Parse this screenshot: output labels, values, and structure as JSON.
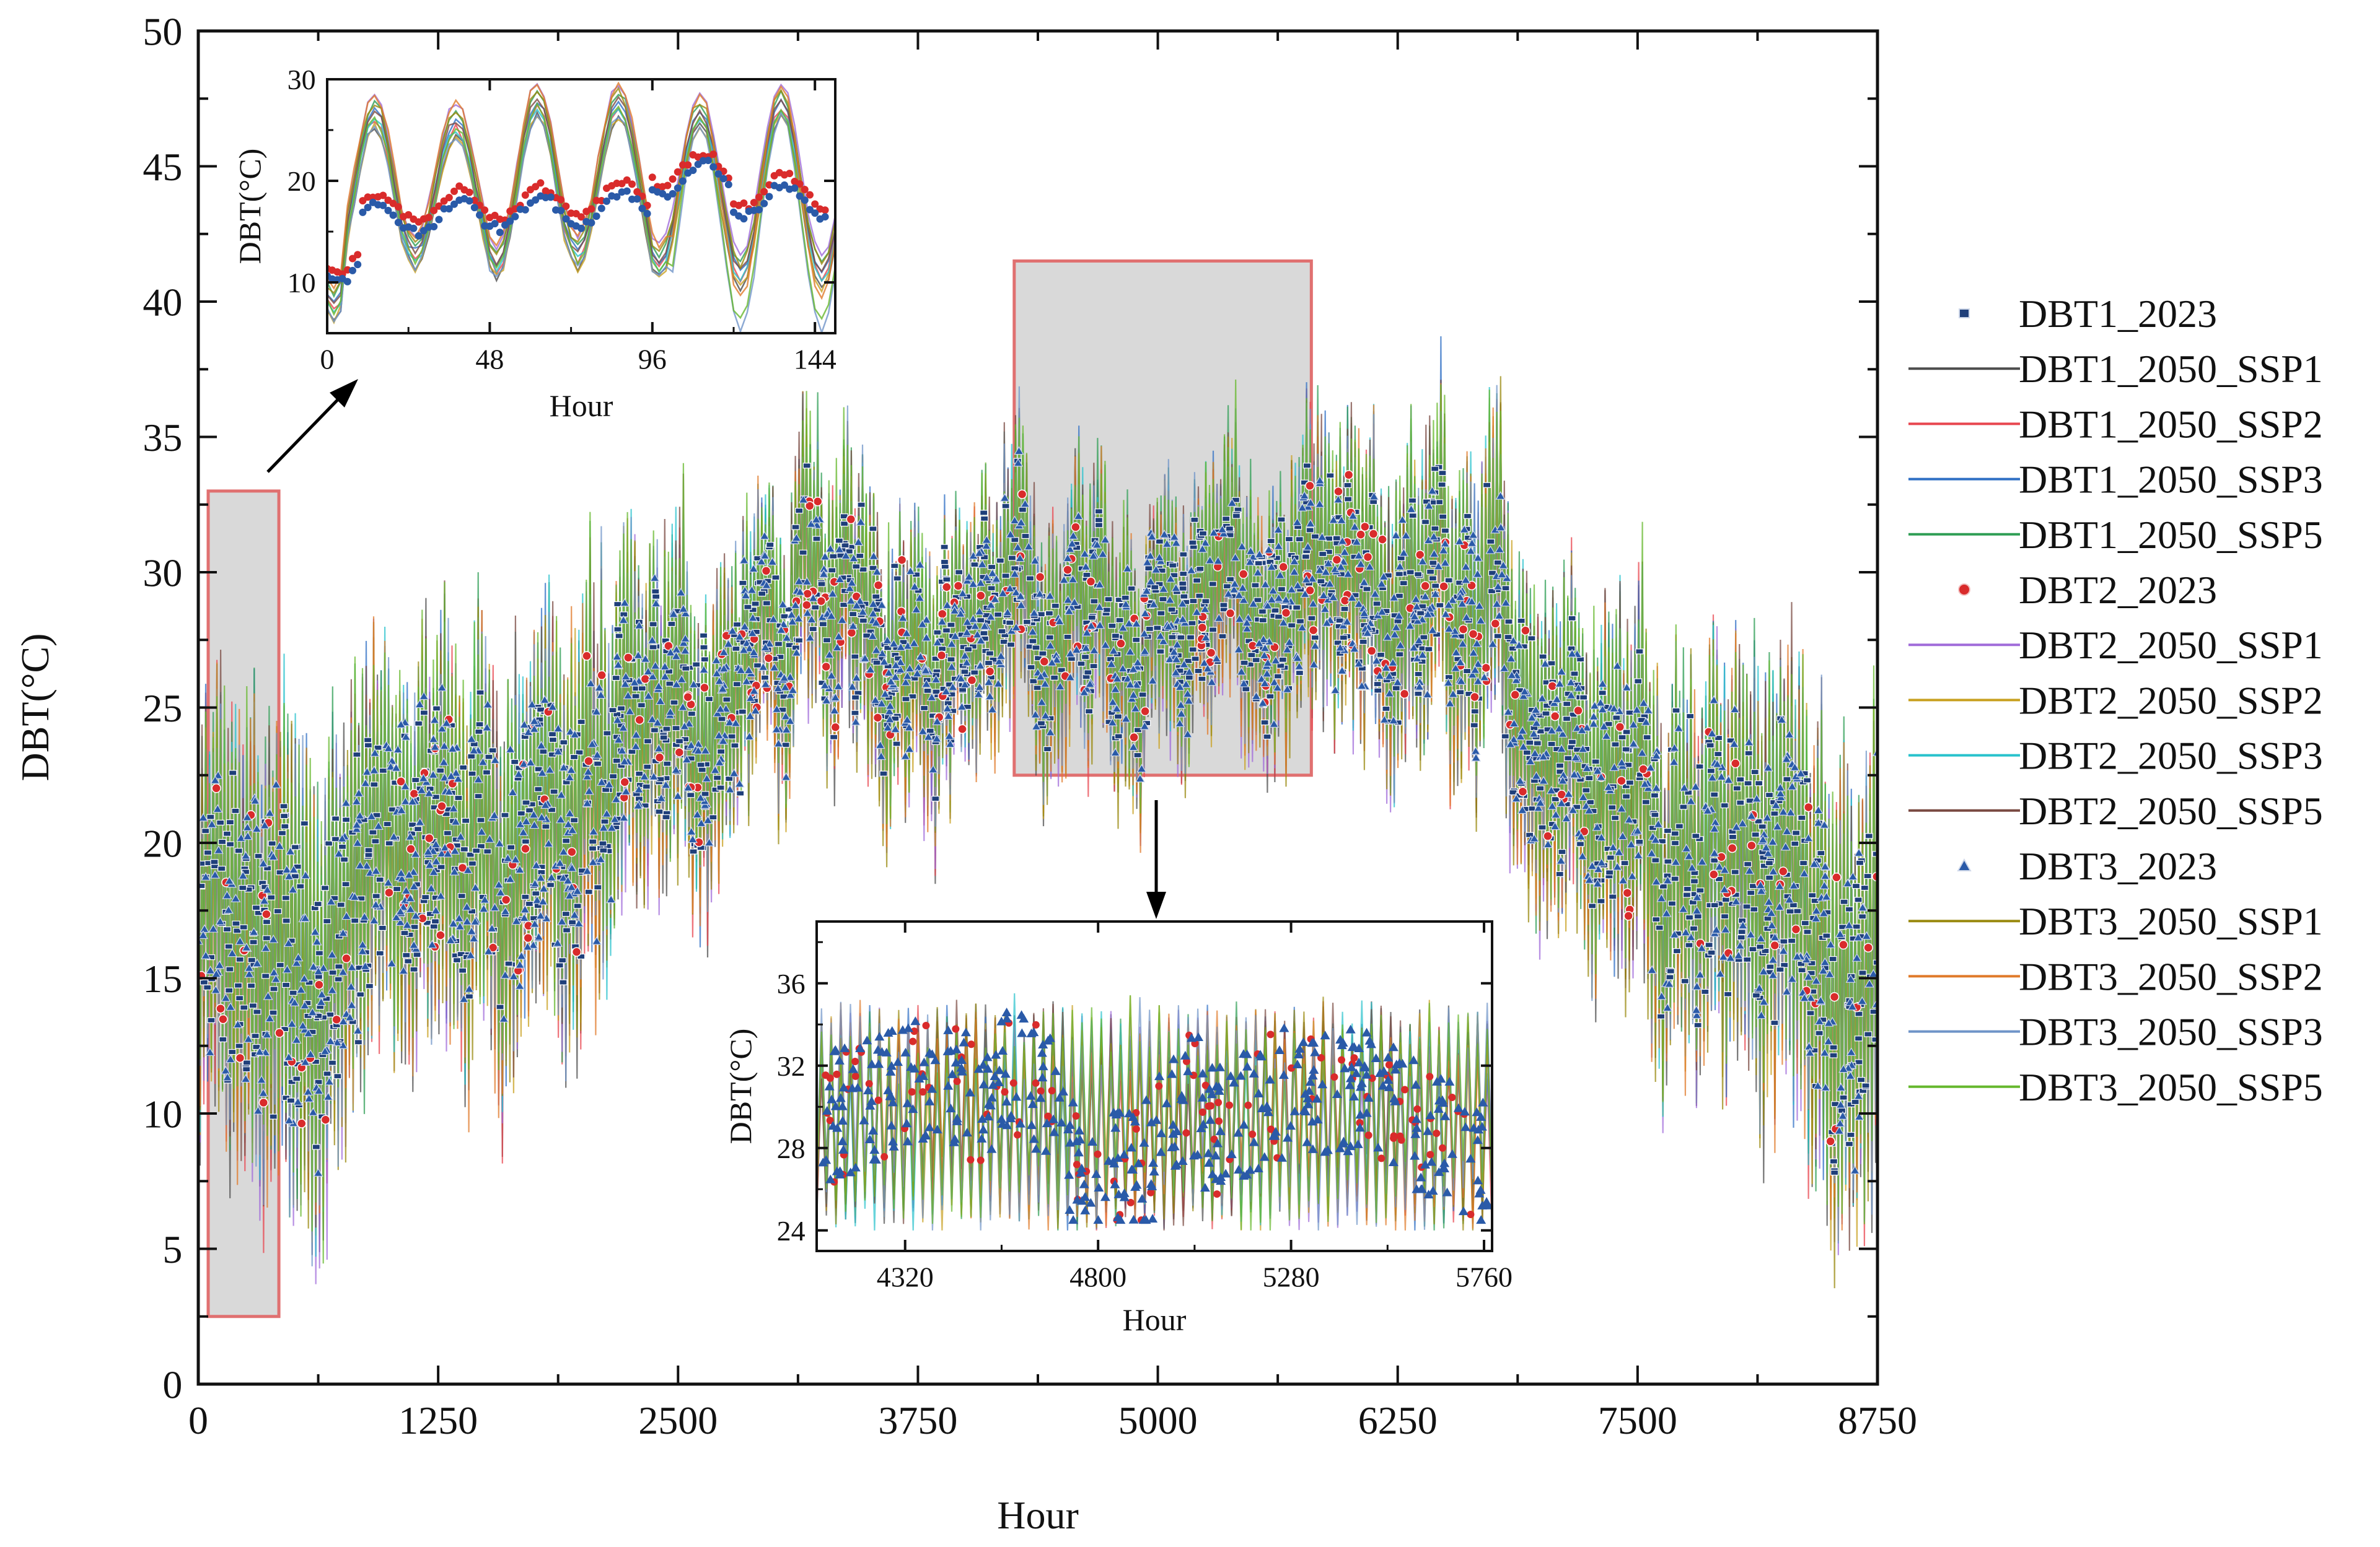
{
  "chart_data": [
    {
      "type": "line",
      "title": "",
      "xlabel": "Hour",
      "ylabel": "DBT(°C)",
      "xlim": [
        0,
        8750
      ],
      "ylim": [
        0,
        50
      ],
      "xticks": [
        "0",
        "1250",
        "2500",
        "3750",
        "5000",
        "6250",
        "7500",
        "8750"
      ],
      "yticks": [
        "0",
        "5",
        "10",
        "15",
        "20",
        "25",
        "30",
        "35",
        "40",
        "45",
        "50"
      ],
      "legend_position": "right",
      "series": [
        {
          "name": "DBT1_2023",
          "color": "#1f3f7a",
          "style": "marker-square"
        },
        {
          "name": "DBT1_2050_SSP1",
          "color": "#4d4d4d",
          "style": "line"
        },
        {
          "name": "DBT1_2050_SSP2",
          "color": "#e8464f",
          "style": "line"
        },
        {
          "name": "DBT1_2050_SSP3",
          "color": "#2f6fc4",
          "style": "line"
        },
        {
          "name": "DBT1_2050_SSP5",
          "color": "#2e9e54",
          "style": "line"
        },
        {
          "name": "DBT2_2023",
          "color": "#d92b2b",
          "style": "marker-circle"
        },
        {
          "name": "DBT2_2050_SSP1",
          "color": "#a06bd9",
          "style": "line"
        },
        {
          "name": "DBT2_2050_SSP2",
          "color": "#c8a020",
          "style": "line"
        },
        {
          "name": "DBT2_2050_SSP3",
          "color": "#28c2cc",
          "style": "line"
        },
        {
          "name": "DBT2_2050_SSP5",
          "color": "#7a4a42",
          "style": "line"
        },
        {
          "name": "DBT3_2023",
          "color": "#2a5aa8",
          "style": "marker-triangle"
        },
        {
          "name": "DBT3_2050_SSP1",
          "color": "#9a8a10",
          "style": "line"
        },
        {
          "name": "DBT3_2050_SSP2",
          "color": "#e07a2a",
          "style": "line"
        },
        {
          "name": "DBT3_2050_SSP3",
          "color": "#6f94c8",
          "style": "line"
        },
        {
          "name": "DBT3_2050_SSP5",
          "color": "#66b82e",
          "style": "line"
        }
      ],
      "seasonal_profile": {
        "x": [
          0,
          500,
          1000,
          1500,
          2000,
          2500,
          3000,
          3500,
          4000,
          4500,
          5000,
          5500,
          6000,
          6500,
          7000,
          7500,
          8000,
          8500,
          8750
        ],
        "mean": [
          16,
          15,
          19,
          20,
          21,
          24,
          27,
          29,
          28,
          28,
          28.5,
          28.5,
          27.5,
          29,
          25,
          22,
          20,
          16,
          17
        ],
        "amplitude": [
          5,
          6,
          5,
          5,
          5,
          4,
          3,
          3.5,
          3,
          3,
          3,
          3,
          3.5,
          3.5,
          4,
          4.5,
          5,
          6,
          6
        ]
      },
      "highlight_regions": [
        {
          "x": [
            0,
            420
          ],
          "y": [
            2.5,
            33
          ]
        },
        {
          "x": [
            4200,
            5800
          ],
          "y": [
            22.5,
            41.5
          ]
        }
      ]
    },
    {
      "type": "line",
      "title": "",
      "xlabel": "Hour",
      "ylabel": "DBT(°C)",
      "xlim": [
        0,
        150
      ],
      "ylim": [
        5,
        30
      ],
      "xticks": [
        "0",
        "48",
        "96",
        "144"
      ],
      "yticks": [
        "10",
        "20",
        "30"
      ],
      "daily_peaks": [
        27,
        26,
        28,
        28,
        27,
        28
      ],
      "daily_troughs": [
        12,
        13,
        12,
        13,
        12,
        11
      ]
    },
    {
      "type": "line",
      "title": "",
      "xlabel": "Hour",
      "ylabel": "DBT(°C)",
      "xlim": [
        4100,
        5780
      ],
      "ylim": [
        23,
        39
      ],
      "xticks": [
        "4320",
        "4800",
        "5280",
        "5760"
      ],
      "yticks": [
        "24",
        "28",
        "32",
        "36"
      ]
    }
  ]
}
